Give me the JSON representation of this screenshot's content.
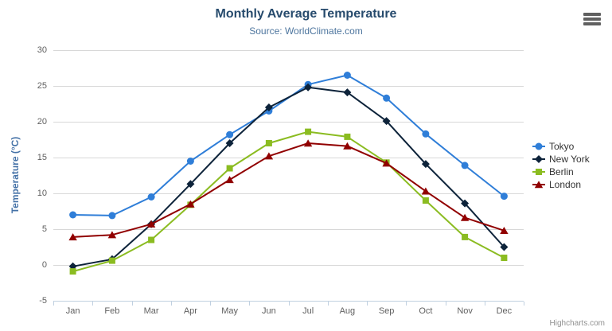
{
  "chart": {
    "credits_label": "Highcharts.com",
    "context_menu_icon": "hamburger-icon"
  },
  "chart_data": {
    "type": "line",
    "title": "Monthly Average Temperature",
    "subtitle": "Source: WorldClimate.com",
    "xlabel": "",
    "ylabel": "Temperature (°C)",
    "ylim": [
      -5,
      30
    ],
    "yticks": [
      -5,
      0,
      5,
      10,
      15,
      20,
      25,
      30
    ],
    "grid": true,
    "legend_position": "right",
    "categories": [
      "Jan",
      "Feb",
      "Mar",
      "Apr",
      "May",
      "Jun",
      "Jul",
      "Aug",
      "Sep",
      "Oct",
      "Nov",
      "Dec"
    ],
    "series": [
      {
        "name": "Tokyo",
        "color": "#2f7ed8",
        "marker": "circle",
        "values": [
          7.0,
          6.9,
          9.5,
          14.5,
          18.2,
          21.5,
          25.2,
          26.5,
          23.3,
          18.3,
          13.9,
          9.6
        ]
      },
      {
        "name": "New York",
        "color": "#0d233a",
        "marker": "diamond",
        "values": [
          -0.2,
          0.8,
          5.7,
          11.3,
          17.0,
          22.0,
          24.8,
          24.1,
          20.1,
          14.1,
          8.6,
          2.5
        ]
      },
      {
        "name": "Berlin",
        "color": "#8bbc21",
        "marker": "square",
        "values": [
          -0.9,
          0.6,
          3.5,
          8.4,
          13.5,
          17.0,
          18.6,
          17.9,
          14.3,
          9.0,
          3.9,
          1.0
        ]
      },
      {
        "name": "London",
        "color": "#910000",
        "marker": "triangle",
        "values": [
          3.9,
          4.2,
          5.7,
          8.5,
          11.9,
          15.2,
          17.0,
          16.6,
          14.2,
          10.3,
          6.6,
          4.8
        ]
      }
    ]
  }
}
